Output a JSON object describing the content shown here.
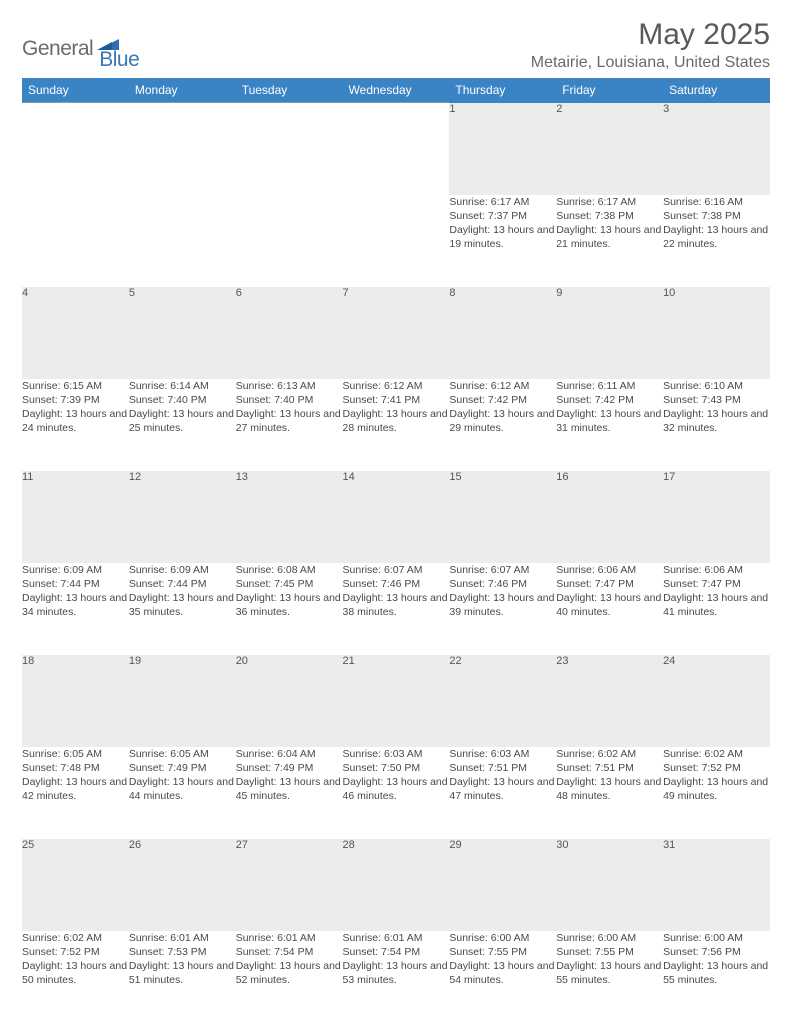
{
  "brand": {
    "name1": "General",
    "name2": "Blue",
    "logo_color": "#2f6fb0"
  },
  "title": "May 2025",
  "location": "Metairie, Louisiana, United States",
  "colors": {
    "header_bg": "#3a83c5",
    "header_text": "#ffffff",
    "daynum_bg": "#ececec",
    "row_divider": "#8a9bb0",
    "body_text": "#4a4a4a",
    "title_text": "#5a5a5a"
  },
  "typography": {
    "title_fontsize": 30,
    "location_fontsize": 16,
    "dayheader_fontsize": 12,
    "daynum_fontsize": 11,
    "detail_fontsize": 10.5
  },
  "day_headers": [
    "Sunday",
    "Monday",
    "Tuesday",
    "Wednesday",
    "Thursday",
    "Friday",
    "Saturday"
  ],
  "weeks": [
    [
      null,
      null,
      null,
      null,
      {
        "n": "1",
        "sunrise": "6:17 AM",
        "sunset": "7:37 PM",
        "daylight": "13 hours and 19 minutes."
      },
      {
        "n": "2",
        "sunrise": "6:17 AM",
        "sunset": "7:38 PM",
        "daylight": "13 hours and 21 minutes."
      },
      {
        "n": "3",
        "sunrise": "6:16 AM",
        "sunset": "7:38 PM",
        "daylight": "13 hours and 22 minutes."
      }
    ],
    [
      {
        "n": "4",
        "sunrise": "6:15 AM",
        "sunset": "7:39 PM",
        "daylight": "13 hours and 24 minutes."
      },
      {
        "n": "5",
        "sunrise": "6:14 AM",
        "sunset": "7:40 PM",
        "daylight": "13 hours and 25 minutes."
      },
      {
        "n": "6",
        "sunrise": "6:13 AM",
        "sunset": "7:40 PM",
        "daylight": "13 hours and 27 minutes."
      },
      {
        "n": "7",
        "sunrise": "6:12 AM",
        "sunset": "7:41 PM",
        "daylight": "13 hours and 28 minutes."
      },
      {
        "n": "8",
        "sunrise": "6:12 AM",
        "sunset": "7:42 PM",
        "daylight": "13 hours and 29 minutes."
      },
      {
        "n": "9",
        "sunrise": "6:11 AM",
        "sunset": "7:42 PM",
        "daylight": "13 hours and 31 minutes."
      },
      {
        "n": "10",
        "sunrise": "6:10 AM",
        "sunset": "7:43 PM",
        "daylight": "13 hours and 32 minutes."
      }
    ],
    [
      {
        "n": "11",
        "sunrise": "6:09 AM",
        "sunset": "7:44 PM",
        "daylight": "13 hours and 34 minutes."
      },
      {
        "n": "12",
        "sunrise": "6:09 AM",
        "sunset": "7:44 PM",
        "daylight": "13 hours and 35 minutes."
      },
      {
        "n": "13",
        "sunrise": "6:08 AM",
        "sunset": "7:45 PM",
        "daylight": "13 hours and 36 minutes."
      },
      {
        "n": "14",
        "sunrise": "6:07 AM",
        "sunset": "7:46 PM",
        "daylight": "13 hours and 38 minutes."
      },
      {
        "n": "15",
        "sunrise": "6:07 AM",
        "sunset": "7:46 PM",
        "daylight": "13 hours and 39 minutes."
      },
      {
        "n": "16",
        "sunrise": "6:06 AM",
        "sunset": "7:47 PM",
        "daylight": "13 hours and 40 minutes."
      },
      {
        "n": "17",
        "sunrise": "6:06 AM",
        "sunset": "7:47 PM",
        "daylight": "13 hours and 41 minutes."
      }
    ],
    [
      {
        "n": "18",
        "sunrise": "6:05 AM",
        "sunset": "7:48 PM",
        "daylight": "13 hours and 42 minutes."
      },
      {
        "n": "19",
        "sunrise": "6:05 AM",
        "sunset": "7:49 PM",
        "daylight": "13 hours and 44 minutes."
      },
      {
        "n": "20",
        "sunrise": "6:04 AM",
        "sunset": "7:49 PM",
        "daylight": "13 hours and 45 minutes."
      },
      {
        "n": "21",
        "sunrise": "6:03 AM",
        "sunset": "7:50 PM",
        "daylight": "13 hours and 46 minutes."
      },
      {
        "n": "22",
        "sunrise": "6:03 AM",
        "sunset": "7:51 PM",
        "daylight": "13 hours and 47 minutes."
      },
      {
        "n": "23",
        "sunrise": "6:02 AM",
        "sunset": "7:51 PM",
        "daylight": "13 hours and 48 minutes."
      },
      {
        "n": "24",
        "sunrise": "6:02 AM",
        "sunset": "7:52 PM",
        "daylight": "13 hours and 49 minutes."
      }
    ],
    [
      {
        "n": "25",
        "sunrise": "6:02 AM",
        "sunset": "7:52 PM",
        "daylight": "13 hours and 50 minutes."
      },
      {
        "n": "26",
        "sunrise": "6:01 AM",
        "sunset": "7:53 PM",
        "daylight": "13 hours and 51 minutes."
      },
      {
        "n": "27",
        "sunrise": "6:01 AM",
        "sunset": "7:54 PM",
        "daylight": "13 hours and 52 minutes."
      },
      {
        "n": "28",
        "sunrise": "6:01 AM",
        "sunset": "7:54 PM",
        "daylight": "13 hours and 53 minutes."
      },
      {
        "n": "29",
        "sunrise": "6:00 AM",
        "sunset": "7:55 PM",
        "daylight": "13 hours and 54 minutes."
      },
      {
        "n": "30",
        "sunrise": "6:00 AM",
        "sunset": "7:55 PM",
        "daylight": "13 hours and 55 minutes."
      },
      {
        "n": "31",
        "sunrise": "6:00 AM",
        "sunset": "7:56 PM",
        "daylight": "13 hours and 55 minutes."
      }
    ]
  ],
  "labels": {
    "sunrise": "Sunrise: ",
    "sunset": "Sunset: ",
    "daylight": "Daylight: "
  }
}
